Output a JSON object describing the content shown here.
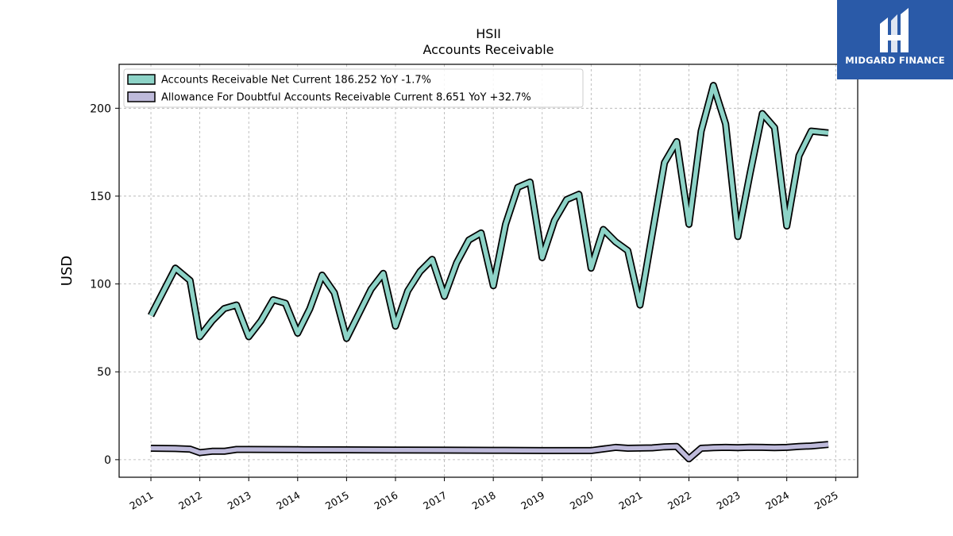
{
  "brand": {
    "name": "MIDGARD FINANCE",
    "bg_color": "#2a5aa8"
  },
  "chart_data": {
    "type": "line",
    "title": "HSII",
    "subtitle": "Accounts Receivable",
    "xlabel": "",
    "ylabel": "USD",
    "xlim": [
      2010.35,
      2025.45
    ],
    "ylim": [
      -10,
      225
    ],
    "xticks": [
      2011,
      2012,
      2013,
      2014,
      2015,
      2016,
      2017,
      2018,
      2019,
      2020,
      2021,
      2022,
      2023,
      2024,
      2025
    ],
    "yticks": [
      0,
      50,
      100,
      150,
      200
    ],
    "grid": true,
    "legend_position": "top-left",
    "series": [
      {
        "name": "Accounts Receivable Net Current  186.252 YoY -1.7%",
        "color": "#8dd3c7",
        "points": [
          [
            2011.0,
            82
          ],
          [
            2011.5,
            109
          ],
          [
            2011.8,
            102
          ],
          [
            2012.0,
            70
          ],
          [
            2012.25,
            79
          ],
          [
            2012.5,
            86
          ],
          [
            2012.75,
            88
          ],
          [
            2013.0,
            70
          ],
          [
            2013.25,
            79
          ],
          [
            2013.5,
            91
          ],
          [
            2013.75,
            89
          ],
          [
            2014.0,
            72
          ],
          [
            2014.25,
            86
          ],
          [
            2014.5,
            105
          ],
          [
            2014.75,
            95
          ],
          [
            2015.0,
            69
          ],
          [
            2015.5,
            97
          ],
          [
            2015.75,
            106
          ],
          [
            2016.0,
            76
          ],
          [
            2016.25,
            96
          ],
          [
            2016.5,
            107
          ],
          [
            2016.75,
            114
          ],
          [
            2017.0,
            93
          ],
          [
            2017.25,
            112
          ],
          [
            2017.5,
            125
          ],
          [
            2017.75,
            129
          ],
          [
            2018.0,
            99
          ],
          [
            2018.25,
            134
          ],
          [
            2018.5,
            155
          ],
          [
            2018.75,
            158
          ],
          [
            2019.0,
            115
          ],
          [
            2019.25,
            136
          ],
          [
            2019.5,
            148
          ],
          [
            2019.75,
            151
          ],
          [
            2020.0,
            109
          ],
          [
            2020.25,
            131
          ],
          [
            2020.5,
            124
          ],
          [
            2020.75,
            119
          ],
          [
            2021.0,
            88
          ],
          [
            2021.5,
            169
          ],
          [
            2021.75,
            181
          ],
          [
            2022.0,
            134
          ],
          [
            2022.25,
            187
          ],
          [
            2022.5,
            213
          ],
          [
            2022.75,
            191
          ],
          [
            2023.0,
            127
          ],
          [
            2023.25,
            163
          ],
          [
            2023.5,
            197
          ],
          [
            2023.75,
            189
          ],
          [
            2024.0,
            133
          ],
          [
            2024.25,
            173
          ],
          [
            2024.5,
            187
          ],
          [
            2024.85,
            186
          ]
        ]
      },
      {
        "name": "Allowance For Doubtful Accounts Receivable Current  8.651 YoY +32.7%",
        "color": "#bebada",
        "points": [
          [
            2011.0,
            6.5
          ],
          [
            2011.5,
            6.3
          ],
          [
            2011.8,
            6
          ],
          [
            2012.0,
            4
          ],
          [
            2012.25,
            4.8
          ],
          [
            2012.5,
            4.8
          ],
          [
            2012.75,
            5.8
          ],
          [
            2013.0,
            5.8
          ],
          [
            2014.0,
            5.7
          ],
          [
            2015.0,
            5.6
          ],
          [
            2016.0,
            5.5
          ],
          [
            2017.0,
            5.4
          ],
          [
            2018.0,
            5.3
          ],
          [
            2019.0,
            5.2
          ],
          [
            2020.0,
            5.2
          ],
          [
            2020.5,
            7
          ],
          [
            2020.75,
            6.5
          ],
          [
            2021.0,
            6.6
          ],
          [
            2021.25,
            6.7
          ],
          [
            2021.5,
            7.3
          ],
          [
            2021.75,
            7.5
          ],
          [
            2022.0,
            0.5
          ],
          [
            2022.25,
            6.5
          ],
          [
            2022.5,
            6.8
          ],
          [
            2022.75,
            7
          ],
          [
            2023.0,
            6.8
          ],
          [
            2023.25,
            7.1
          ],
          [
            2023.5,
            7
          ],
          [
            2023.75,
            6.8
          ],
          [
            2024.0,
            7
          ],
          [
            2024.25,
            7.5
          ],
          [
            2024.5,
            7.8
          ],
          [
            2024.85,
            8.651
          ]
        ]
      }
    ]
  }
}
